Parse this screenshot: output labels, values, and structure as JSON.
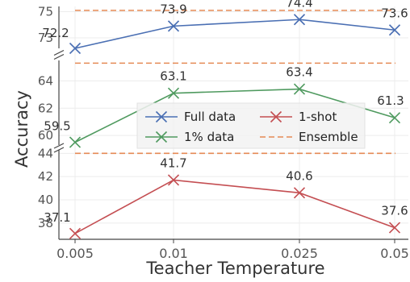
{
  "chart_data": {
    "type": "line",
    "xlabel": "Teacher Temperature",
    "ylabel": "Accuracy",
    "categories": [
      "0.005",
      "0.01",
      "0.025",
      "0.05"
    ],
    "grid": true,
    "broken_y_axis": true,
    "legend_position": "center-right",
    "panels": [
      {
        "name": "top",
        "ylim": [
          72.2,
          75.4
        ],
        "yticks": [
          "73",
          "75"
        ],
        "series": "Full data",
        "ensemble": 75.1
      },
      {
        "name": "middle",
        "ylim": [
          59.3,
          65.5
        ],
        "yticks": [
          "60",
          "62",
          "64"
        ],
        "series": "1% data",
        "ensemble": 65.3
      },
      {
        "name": "bottom",
        "ylim": [
          36.6,
          44.3
        ],
        "yticks": [
          "38",
          "40",
          "42",
          "44"
        ],
        "series": "1-shot",
        "ensemble": 44.0
      }
    ],
    "series": [
      {
        "name": "Full data",
        "color": "#4a6fb3",
        "values": [
          72.2,
          73.9,
          74.4,
          73.6
        ],
        "labels": [
          "72.2",
          "73.9",
          "74.4",
          "73.6"
        ]
      },
      {
        "name": "1% data",
        "color": "#4f9a5f",
        "values": [
          59.5,
          63.1,
          63.4,
          61.3
        ],
        "labels": [
          "59.5",
          "63.1",
          "63.4",
          "61.3"
        ]
      },
      {
        "name": "1-shot",
        "color": "#c44e52",
        "values": [
          37.1,
          41.7,
          40.6,
          37.6
        ],
        "labels": [
          "37.1",
          "41.7",
          "40.6",
          "37.6"
        ]
      }
    ],
    "ensemble": {
      "name": "Ensemble",
      "color": "#e58a55"
    },
    "legend": [
      {
        "label": "Full data",
        "kind": "marker",
        "color": "#4a6fb3"
      },
      {
        "label": "1-shot",
        "kind": "marker",
        "color": "#c44e52"
      },
      {
        "label": "1% data",
        "kind": "marker",
        "color": "#4f9a5f"
      },
      {
        "label": "Ensemble",
        "kind": "dashed",
        "color": "#e58a55"
      }
    ]
  }
}
